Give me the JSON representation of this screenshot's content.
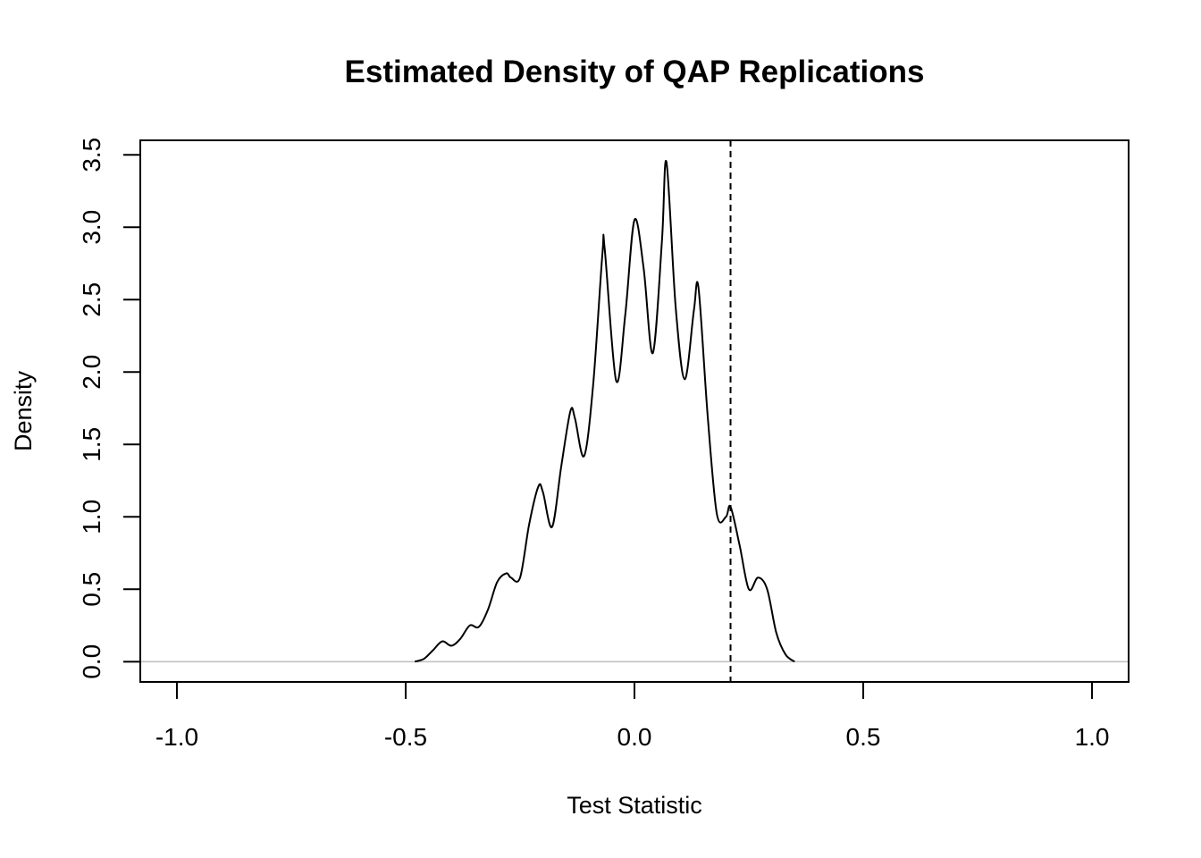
{
  "chart_data": {
    "type": "line",
    "title": "Estimated Density of QAP Replications",
    "xlabel": "Test Statistic",
    "ylabel": "Density",
    "xlim": [
      -1.08,
      1.08
    ],
    "ylim": [
      -0.14,
      3.6
    ],
    "x_ticks": [
      -1.0,
      -0.5,
      0.0,
      0.5,
      1.0
    ],
    "x_tick_labels": [
      "-1.0",
      "-0.5",
      "0.0",
      "0.5",
      "1.0"
    ],
    "y_ticks": [
      0.0,
      0.5,
      1.0,
      1.5,
      2.0,
      2.5,
      3.0,
      3.5
    ],
    "y_tick_labels": [
      "0.0",
      "0.5",
      "1.0",
      "1.5",
      "2.0",
      "2.5",
      "3.0",
      "3.5"
    ],
    "grid": false,
    "baseline": {
      "y": 0,
      "color": "#bebebe"
    },
    "observed_statistic": {
      "x": 0.21,
      "style": "dashed"
    },
    "series": [
      {
        "color": "#000000",
        "x": [
          -0.48,
          -0.46,
          -0.44,
          -0.42,
          -0.4,
          -0.38,
          -0.36,
          -0.34,
          -0.32,
          -0.3,
          -0.28,
          -0.27,
          -0.25,
          -0.23,
          -0.21,
          -0.2,
          -0.18,
          -0.16,
          -0.14,
          -0.13,
          -0.11,
          -0.09,
          -0.07,
          -0.065,
          -0.04,
          -0.02,
          0.0,
          0.02,
          0.04,
          0.06,
          0.07,
          0.09,
          0.11,
          0.13,
          0.14,
          0.16,
          0.18,
          0.2,
          0.21,
          0.23,
          0.25,
          0.27,
          0.29,
          0.31,
          0.33,
          0.35
        ],
        "values": [
          0.0,
          0.02,
          0.08,
          0.14,
          0.11,
          0.16,
          0.25,
          0.24,
          0.36,
          0.55,
          0.61,
          0.58,
          0.58,
          0.95,
          1.21,
          1.17,
          0.93,
          1.35,
          1.73,
          1.68,
          1.42,
          1.92,
          2.82,
          2.85,
          1.94,
          2.4,
          3.05,
          2.72,
          2.13,
          2.9,
          3.45,
          2.45,
          1.95,
          2.43,
          2.58,
          1.7,
          1.02,
          1.0,
          1.07,
          0.8,
          0.5,
          0.58,
          0.5,
          0.2,
          0.05,
          0.0
        ]
      }
    ]
  }
}
